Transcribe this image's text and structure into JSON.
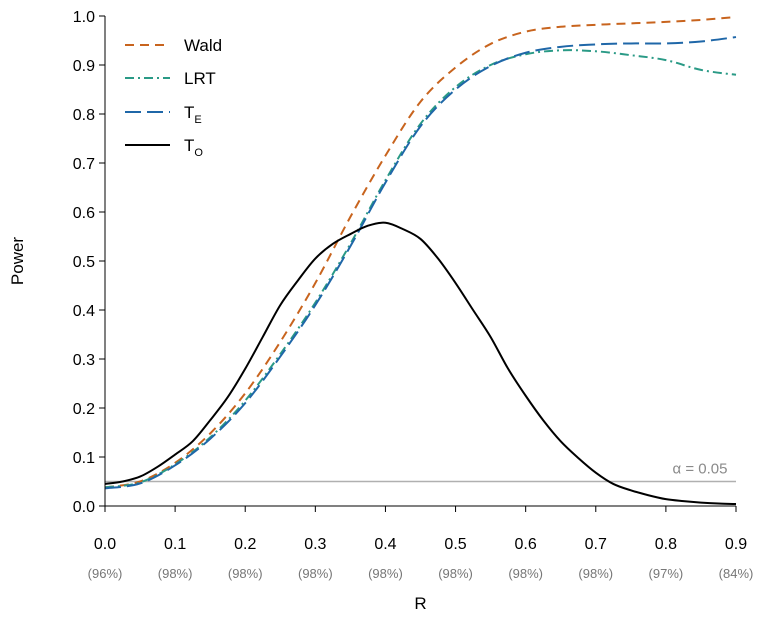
{
  "chart_data": {
    "type": "line",
    "xlabel": "R",
    "ylabel": "Power",
    "xlim": [
      0,
      0.9
    ],
    "ylim": [
      0,
      1
    ],
    "x_ticks": [
      {
        "value": 0.0,
        "label": "0.0",
        "sublabel": "(96%)"
      },
      {
        "value": 0.1,
        "label": "0.1",
        "sublabel": "(98%)"
      },
      {
        "value": 0.2,
        "label": "0.2",
        "sublabel": "(98%)"
      },
      {
        "value": 0.3,
        "label": "0.3",
        "sublabel": "(98%)"
      },
      {
        "value": 0.4,
        "label": "0.4",
        "sublabel": "(98%)"
      },
      {
        "value": 0.5,
        "label": "0.5",
        "sublabel": "(98%)"
      },
      {
        "value": 0.6,
        "label": "0.6",
        "sublabel": "(98%)"
      },
      {
        "value": 0.7,
        "label": "0.7",
        "sublabel": "(98%)"
      },
      {
        "value": 0.8,
        "label": "0.8",
        "sublabel": "(97%)"
      },
      {
        "value": 0.9,
        "label": "0.9",
        "sublabel": "(84%)"
      }
    ],
    "y_ticks": [
      "0.0",
      "0.1",
      "0.2",
      "0.3",
      "0.4",
      "0.5",
      "0.6",
      "0.7",
      "0.8",
      "0.9",
      "1.0"
    ],
    "grid": false,
    "legend_position": "top-left",
    "reference_line": {
      "y": 0.05,
      "label": "α = 0.05",
      "color": "#b0b0b0"
    },
    "series": [
      {
        "name": "Wald",
        "name_sub": "",
        "color": "#c8641e",
        "dash": "9,6",
        "x": [
          0,
          0.05,
          0.1,
          0.15,
          0.2,
          0.25,
          0.3,
          0.35,
          0.4,
          0.45,
          0.5,
          0.55,
          0.6,
          0.65,
          0.7,
          0.75,
          0.8,
          0.85,
          0.9
        ],
        "y": [
          0.038,
          0.05,
          0.088,
          0.148,
          0.23,
          0.335,
          0.455,
          0.59,
          0.715,
          0.825,
          0.895,
          0.943,
          0.968,
          0.978,
          0.982,
          0.985,
          0.988,
          0.992,
          0.998
        ]
      },
      {
        "name": "LRT",
        "name_sub": "",
        "color": "#2a9a86",
        "dash": "9,4,2,4",
        "x": [
          0,
          0.05,
          0.1,
          0.15,
          0.2,
          0.25,
          0.3,
          0.35,
          0.4,
          0.45,
          0.5,
          0.55,
          0.6,
          0.65,
          0.7,
          0.75,
          0.8,
          0.85,
          0.9
        ],
        "y": [
          0.038,
          0.048,
          0.085,
          0.14,
          0.215,
          0.31,
          0.415,
          0.535,
          0.665,
          0.78,
          0.855,
          0.9,
          0.922,
          0.93,
          0.928,
          0.92,
          0.91,
          0.89,
          0.88
        ]
      },
      {
        "name": "T",
        "name_sub": "E",
        "color": "#1f67a8",
        "dash": "16,6",
        "x": [
          0,
          0.05,
          0.1,
          0.15,
          0.2,
          0.25,
          0.3,
          0.35,
          0.4,
          0.45,
          0.5,
          0.55,
          0.6,
          0.65,
          0.7,
          0.75,
          0.8,
          0.85,
          0.9
        ],
        "y": [
          0.036,
          0.046,
          0.083,
          0.137,
          0.21,
          0.305,
          0.41,
          0.53,
          0.66,
          0.775,
          0.85,
          0.898,
          0.925,
          0.937,
          0.942,
          0.944,
          0.944,
          0.948,
          0.957
        ]
      },
      {
        "name": "T",
        "name_sub": "O",
        "color": "#000000",
        "dash": "",
        "x": [
          0,
          0.025,
          0.05,
          0.075,
          0.1,
          0.125,
          0.15,
          0.175,
          0.2,
          0.225,
          0.25,
          0.275,
          0.3,
          0.325,
          0.35,
          0.375,
          0.4,
          0.425,
          0.45,
          0.475,
          0.5,
          0.525,
          0.55,
          0.575,
          0.6,
          0.625,
          0.65,
          0.675,
          0.7,
          0.725,
          0.75,
          0.775,
          0.8,
          0.825,
          0.85,
          0.875,
          0.9
        ],
        "y": [
          0.045,
          0.05,
          0.06,
          0.08,
          0.105,
          0.132,
          0.175,
          0.222,
          0.28,
          0.345,
          0.41,
          0.46,
          0.505,
          0.535,
          0.555,
          0.572,
          0.578,
          0.565,
          0.545,
          0.505,
          0.455,
          0.4,
          0.345,
          0.28,
          0.225,
          0.175,
          0.132,
          0.098,
          0.068,
          0.045,
          0.032,
          0.022,
          0.014,
          0.01,
          0.007,
          0.005,
          0.004
        ]
      }
    ]
  }
}
